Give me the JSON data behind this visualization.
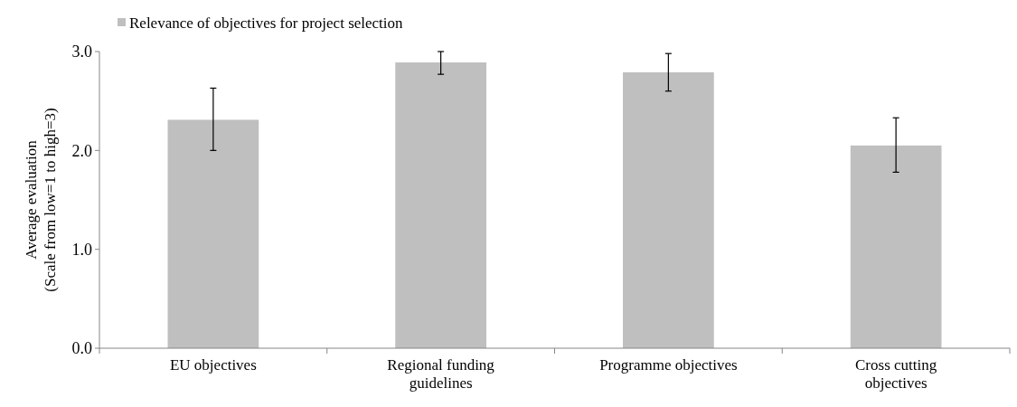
{
  "chart_data": {
    "type": "bar",
    "ylabel": "Average evaluation\n(Scale from low=1 to high=3)",
    "categories": [
      "EU objectives",
      "Regional funding guidelines",
      "Programme objectives",
      "Cross cutting objectives"
    ],
    "series": [
      {
        "name": "Relevance of objectives for project selection",
        "color": "#bfbfbf",
        "values": [
          2.31,
          2.89,
          2.79,
          2.05
        ],
        "errors": [
          [
            2.0,
            2.63
          ],
          [
            2.77,
            3.0
          ],
          [
            2.6,
            2.98
          ],
          [
            1.78,
            2.33
          ]
        ]
      }
    ],
    "ylim": [
      0,
      3
    ],
    "yticks": [
      {
        "value": 0,
        "label": "0.0"
      },
      {
        "value": 1,
        "label": "1.0"
      },
      {
        "value": 2,
        "label": "2.0"
      },
      {
        "value": 3,
        "label": "3.0"
      }
    ],
    "grid": false,
    "legend": "top left"
  }
}
